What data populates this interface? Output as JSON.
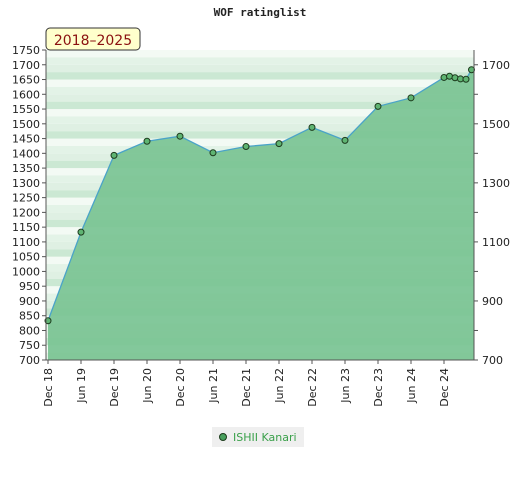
{
  "chart_data": {
    "type": "area",
    "title": "WOF ratinglist",
    "range_badge": "2018–2025",
    "x_ticks": [
      "Dec 18",
      "Jun 19",
      "Dec 19",
      "Jun 20",
      "Dec 20",
      "Jun 21",
      "Dec 21",
      "Jun 22",
      "Dec 22",
      "Jun 23",
      "Dec 23",
      "Jun 24",
      "Dec 24"
    ],
    "left_axis": {
      "ylim": [
        700,
        1750
      ],
      "step": 50
    },
    "right_axis": {
      "ylim": [
        700,
        1750
      ],
      "labeled_ticks": [
        700,
        900,
        1100,
        1300,
        1500,
        1700
      ],
      "minor_step": 100
    },
    "grid": "horizontal bands",
    "legend_position": "bottom-center",
    "series": [
      {
        "name": "ISHII Kanari",
        "color": "#4aa3c8",
        "fill": "#7cc494",
        "points": [
          {
            "x": "2018-12",
            "y": 833
          },
          {
            "x": "2019-06",
            "y": 1133
          },
          {
            "x": "2019-12",
            "y": 1393
          },
          {
            "x": "2020-06",
            "y": 1441
          },
          {
            "x": "2020-12",
            "y": 1458
          },
          {
            "x": "2021-06",
            "y": 1402
          },
          {
            "x": "2021-12",
            "y": 1423
          },
          {
            "x": "2022-06",
            "y": 1433
          },
          {
            "x": "2022-12",
            "y": 1488
          },
          {
            "x": "2023-06",
            "y": 1444
          },
          {
            "x": "2023-12",
            "y": 1559
          },
          {
            "x": "2024-06",
            "y": 1588
          },
          {
            "x": "2024-12",
            "y": 1657
          },
          {
            "x": "2025-01",
            "y": 1661
          },
          {
            "x": "2025-02",
            "y": 1656
          },
          {
            "x": "2025-03",
            "y": 1652
          },
          {
            "x": "2025-04",
            "y": 1651
          },
          {
            "x": "2025-05",
            "y": 1683
          }
        ]
      }
    ]
  }
}
